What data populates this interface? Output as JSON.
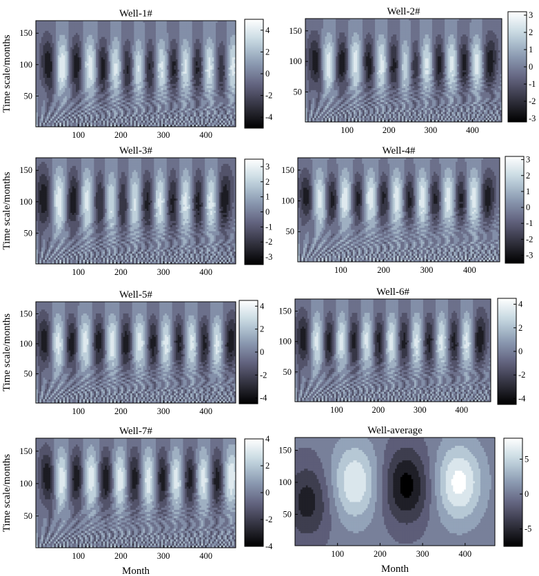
{
  "colors": {
    "colormap_bone": [
      "#000000",
      "#32323f",
      "#636380",
      "#8c9cb3",
      "#c4d7e0",
      "#ffffff"
    ],
    "frame": "#000000",
    "contour_line": "#000000"
  },
  "chart_data": [
    {
      "type": "heatmap",
      "subtype": "wavelet-contour",
      "title": "Well-1#",
      "xlabel": "",
      "ylabel": "Time scale/months",
      "xlim": [
        0,
        470
      ],
      "ylim": [
        1,
        170
      ],
      "xticks": [
        "100",
        "200",
        "300",
        "400"
      ],
      "yticks": [
        "50",
        "100",
        "150"
      ],
      "colorbar": {
        "limits": [
          -5,
          5
        ],
        "ticks": [
          "4",
          "2",
          "0",
          "-2",
          "-4"
        ]
      },
      "centers_x": [
        30,
        62,
        95,
        128,
        158,
        188,
        215,
        242,
        268,
        296,
        324,
        352,
        380,
        408,
        438,
        460
      ],
      "amplitude_scale_band_months": [
        70,
        130
      ]
    },
    {
      "type": "heatmap",
      "subtype": "wavelet-contour",
      "title": "Well-2#",
      "xlabel": "",
      "ylabel": "",
      "xlim": [
        0,
        470
      ],
      "ylim": [
        1,
        170
      ],
      "xticks": [
        "100",
        "200",
        "300",
        "400"
      ],
      "yticks": [
        "50",
        "100",
        "150"
      ],
      "colorbar": {
        "limits": [
          -3.2,
          3.2
        ],
        "ticks": [
          "3",
          "2",
          "1",
          "0",
          "-1",
          "-2",
          "-3"
        ]
      },
      "centers_x": [
        25,
        55,
        88,
        120,
        152,
        182,
        212,
        240,
        262,
        290,
        320,
        350,
        380,
        410,
        440
      ],
      "amplitude_scale_band_months": [
        70,
        130
      ]
    },
    {
      "type": "heatmap",
      "subtype": "wavelet-contour",
      "title": "Well-3#",
      "xlabel": "",
      "ylabel": "Time scale/months",
      "xlim": [
        0,
        470
      ],
      "ylim": [
        1,
        170
      ],
      "xticks": [
        "100",
        "200",
        "300",
        "400"
      ],
      "yticks": [
        "50",
        "100",
        "150"
      ],
      "colorbar": {
        "limits": [
          -3.5,
          3.5
        ],
        "ticks": [
          "3",
          "2",
          "1",
          "0",
          "-1",
          "-2",
          "-3"
        ]
      },
      "centers_x": [
        20,
        55,
        88,
        122,
        150,
        178,
        205,
        232,
        262,
        292,
        322,
        352,
        382,
        412,
        442
      ],
      "amplitude_scale_band_months": [
        70,
        140
      ]
    },
    {
      "type": "heatmap",
      "subtype": "wavelet-contour",
      "title": "Well-4#",
      "xlabel": "",
      "ylabel": "",
      "xlim": [
        0,
        470
      ],
      "ylim": [
        1,
        170
      ],
      "xticks": [
        "100",
        "200",
        "300",
        "400"
      ],
      "yticks": [
        "50",
        "100",
        "150"
      ],
      "colorbar": {
        "limits": [
          -3.5,
          3.2
        ],
        "ticks": [
          "3",
          "2",
          "1",
          "0",
          "-1",
          "-2",
          "-3"
        ]
      },
      "centers_x": [
        22,
        50,
        80,
        110,
        140,
        170,
        200,
        230,
        260,
        290,
        320,
        350,
        380,
        410,
        440
      ],
      "amplitude_scale_band_months": [
        80,
        135
      ]
    },
    {
      "type": "heatmap",
      "subtype": "wavelet-contour",
      "title": "Well-5#",
      "xlabel": "",
      "ylabel": "Time scale/months",
      "xlim": [
        0,
        470
      ],
      "ylim": [
        1,
        170
      ],
      "xticks": [
        "100",
        "200",
        "300",
        "400"
      ],
      "yticks": [
        "50",
        "100",
        "150"
      ],
      "colorbar": {
        "limits": [
          -4.5,
          4.5
        ],
        "ticks": [
          "4",
          "2",
          "0",
          "-2",
          "-4"
        ]
      },
      "centers_x": [
        22,
        52,
        84,
        116,
        148,
        180,
        212,
        244,
        276,
        306,
        336,
        366,
        396,
        426,
        456
      ],
      "amplitude_scale_band_months": [
        75,
        135
      ]
    },
    {
      "type": "heatmap",
      "subtype": "wavelet-contour",
      "title": "Well-6#",
      "xlabel": "",
      "ylabel": "",
      "xlim": [
        0,
        470
      ],
      "ylim": [
        1,
        170
      ],
      "xticks": [
        "100",
        "200",
        "300",
        "400"
      ],
      "yticks": [
        "50",
        "100",
        "150"
      ],
      "colorbar": {
        "limits": [
          -4.5,
          4.5
        ],
        "ticks": [
          "4",
          "2",
          "0",
          "-2",
          "-4"
        ]
      },
      "centers_x": [
        22,
        52,
        82,
        112,
        142,
        172,
        202,
        232,
        262,
        292,
        322,
        352,
        382,
        412,
        442
      ],
      "amplitude_scale_band_months": [
        75,
        135
      ]
    },
    {
      "type": "heatmap",
      "subtype": "wavelet-contour",
      "title": "Well-7#",
      "xlabel": "Month",
      "ylabel": "Time scale/months",
      "xlim": [
        0,
        470
      ],
      "ylim": [
        1,
        170
      ],
      "xticks": [
        "100",
        "200",
        "300",
        "400"
      ],
      "yticks": [
        "50",
        "100",
        "150"
      ],
      "colorbar": {
        "limits": [
          -4,
          4
        ],
        "ticks": [
          "4",
          "2",
          "0",
          "-2",
          "-4"
        ]
      },
      "centers_x": [
        28,
        60,
        95,
        130,
        165,
        198,
        232,
        265,
        298,
        330,
        362,
        394,
        426,
        458
      ],
      "amplitude_scale_band_months": [
        80,
        140
      ]
    },
    {
      "type": "heatmap",
      "subtype": "wavelet-contour",
      "title": "Well-average",
      "xlabel": "Month",
      "ylabel": "",
      "xlim": [
        0,
        470
      ],
      "ylim": [
        1,
        170
      ],
      "xticks": [
        "100",
        "200",
        "300",
        "400"
      ],
      "yticks": [
        "50",
        "100",
        "150"
      ],
      "colorbar": {
        "limits": [
          -7.5,
          8
        ],
        "ticks": [
          "5",
          "0",
          "-5"
        ]
      },
      "smooth_features": [
        {
          "x": 30,
          "y": 70,
          "sign": -1,
          "peak": 5.5
        },
        {
          "x": 140,
          "y": 100,
          "sign": 1,
          "peak": 7
        },
        {
          "x": 262,
          "y": 95,
          "sign": -1,
          "peak": 7.3
        },
        {
          "x": 385,
          "y": 100,
          "sign": 1,
          "peak": 7.8
        }
      ]
    }
  ]
}
